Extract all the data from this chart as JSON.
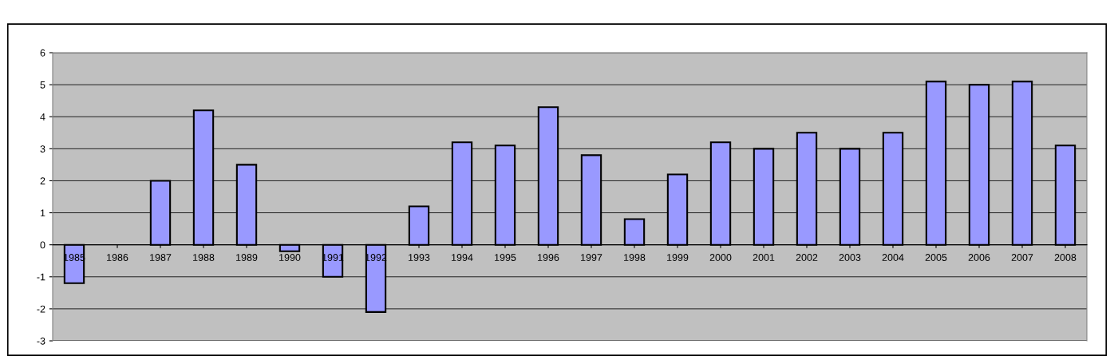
{
  "chart_data": {
    "type": "bar",
    "categories": [
      "1985",
      "1986",
      "1987",
      "1988",
      "1989",
      "1990",
      "1991",
      "1992",
      "1993",
      "1994",
      "1995",
      "1996",
      "1997",
      "1998",
      "1999",
      "2000",
      "2001",
      "2002",
      "2003",
      "2004",
      "2005",
      "2006",
      "2007",
      "2008"
    ],
    "values": [
      -1.2,
      null,
      2.0,
      4.2,
      2.5,
      -0.2,
      -1.0,
      -2.1,
      1.2,
      3.2,
      3.1,
      4.3,
      2.8,
      0.8,
      2.2,
      3.2,
      3.0,
      3.5,
      3.0,
      3.5,
      5.1,
      5.0,
      5.1,
      3.1
    ],
    "color": "#9999ff",
    "ylim": [
      -3,
      6
    ],
    "yticks": [
      -3,
      -2,
      -1,
      0,
      1,
      2,
      3,
      4,
      5,
      6
    ],
    "grid": "y"
  }
}
